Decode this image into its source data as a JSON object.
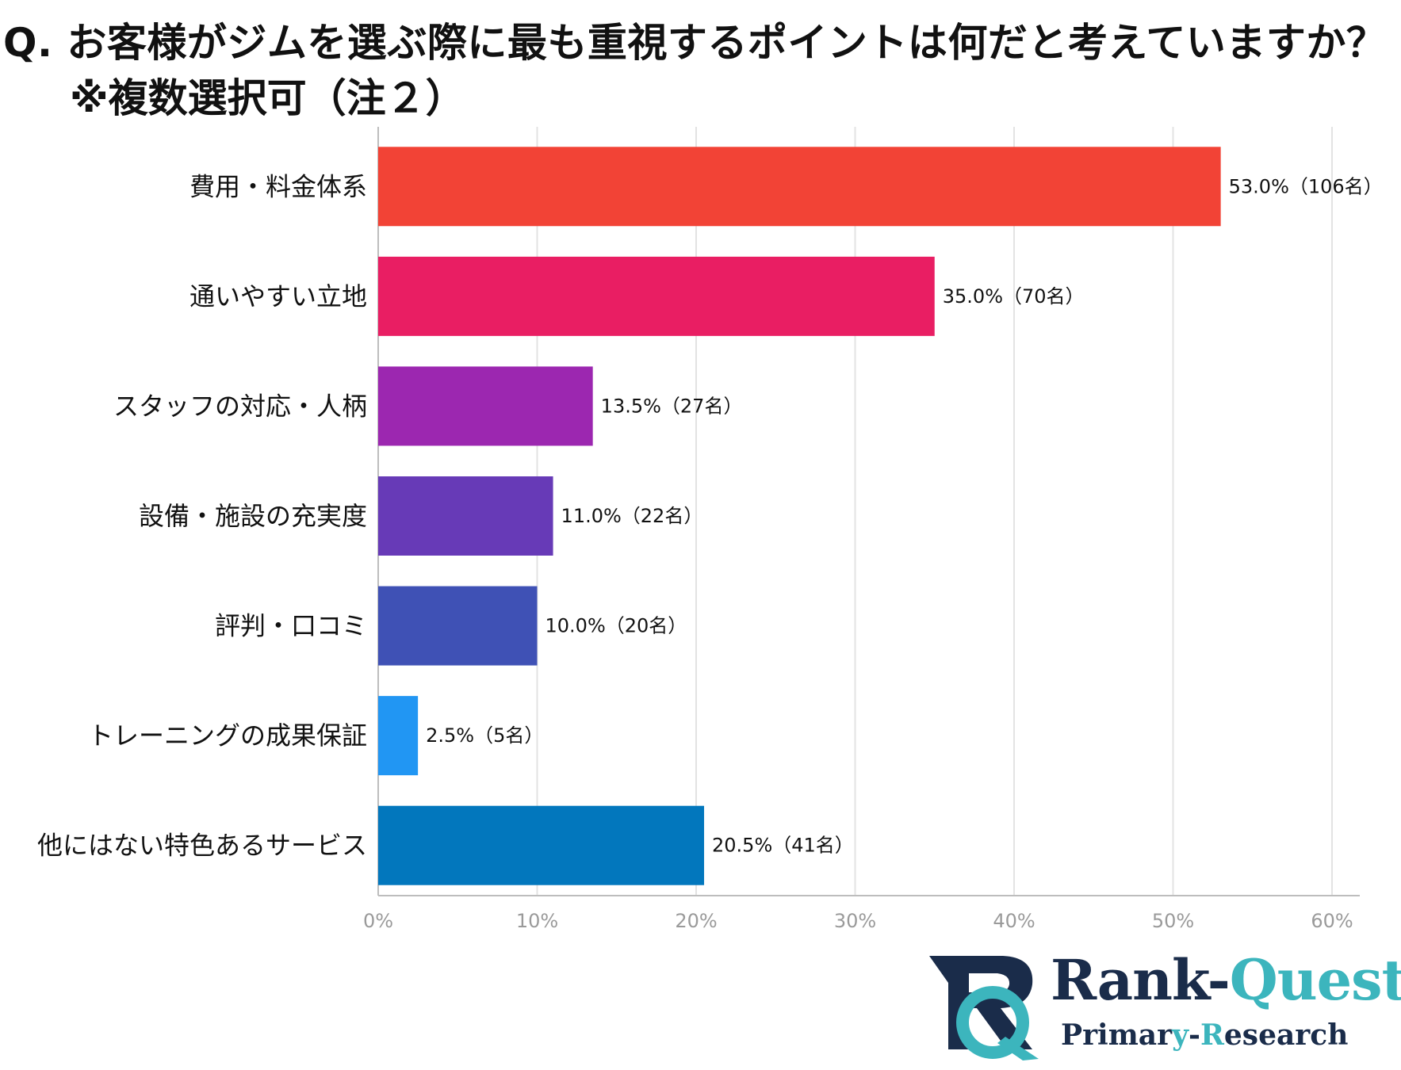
{
  "title": {
    "line1": "Q. お客様がジムを選ぶ際に最も重視するポイントは何だと考えていますか？",
    "line2": "※複数選択可（注２）"
  },
  "colors": {
    "bars": [
      "#f24336",
      "#e91e63",
      "#9c27b0",
      "#673ab7",
      "#3f51b5",
      "#2196f3",
      "#0277bd"
    ],
    "grid": "#e3e3e3",
    "axis": "#9a9a9a",
    "logo_navy": "#1a2c4a",
    "logo_teal": "#3cb5bd"
  },
  "chart_data": {
    "type": "bar",
    "orientation": "horizontal",
    "categories": [
      "費用・料金体系",
      "通いやすい立地",
      "スタッフの対応・人柄",
      "設備・施設の充実度",
      "評判・口コミ",
      "トレーニングの成果保証",
      "他にはない特色あるサービス"
    ],
    "values": [
      53.0,
      35.0,
      13.5,
      11.0,
      10.0,
      2.5,
      20.5
    ],
    "data_labels": [
      "53.0%（106名）",
      "35.0%（70名）",
      "13.5%（27名）",
      "11.0%（22名）",
      "10.0%（20名）",
      "2.5%（5名）",
      "20.5%（41名）"
    ],
    "xlim": [
      0,
      60
    ],
    "x_ticks": [
      0,
      10,
      20,
      30,
      40,
      50,
      60
    ],
    "x_tick_labels": [
      "0%",
      "10%",
      "20%",
      "30%",
      "40%",
      "50%",
      "60%"
    ],
    "grid": true,
    "legend": "none"
  },
  "logo": {
    "brand_left": "Rank-",
    "brand_right": "Quest",
    "sub_a": "Primar",
    "sub_b": "y",
    "sub_c": "-",
    "sub_d": "R",
    "sub_e": "esearch"
  }
}
